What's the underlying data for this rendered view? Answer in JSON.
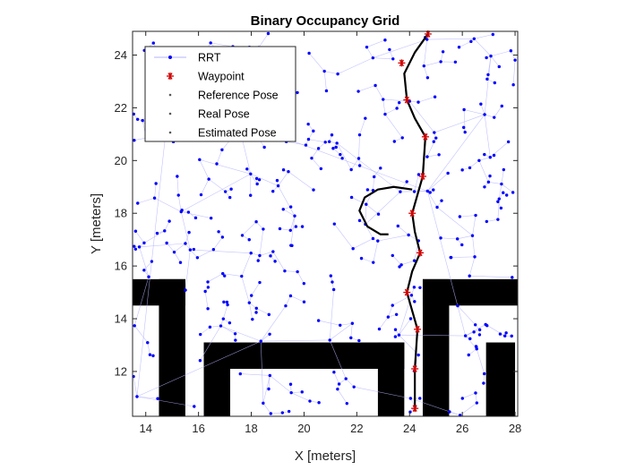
{
  "chart_data": {
    "type": "scatter",
    "title": "Binary Occupancy Grid",
    "xlabel": "X [meters]",
    "ylabel": "Y [meters]",
    "xlim": [
      13.5,
      28.1
    ],
    "ylim": [
      10.3,
      24.9
    ],
    "xticks": [
      "14",
      "16",
      "18",
      "20",
      "22",
      "24",
      "26",
      "28"
    ],
    "yticks": [
      "12",
      "14",
      "16",
      "18",
      "20",
      "22",
      "24"
    ],
    "legend_position": "top-left",
    "colors": {
      "rrt": "#0000ff",
      "edge": "#b3b3ff",
      "waypoint": "#d00000",
      "path": "#000000",
      "obstacle": "#000000"
    },
    "legend": [
      {
        "label": "RRT",
        "marker": "dot",
        "color": "#0000ff",
        "line": true
      },
      {
        "label": "Waypoint",
        "marker": "asterisk",
        "color": "#d00000",
        "line": false
      },
      {
        "label": "Reference Pose",
        "marker": "dot",
        "color": "#555555",
        "line": false
      },
      {
        "label": "Real Pose",
        "marker": "dot",
        "color": "#555555",
        "line": false
      },
      {
        "label": "Estimated Pose",
        "marker": "dot",
        "color": "#555555",
        "line": false
      }
    ],
    "obstacles": [
      {
        "x": [
          13.5,
          15.5
        ],
        "y": [
          14.5,
          15.5
        ]
      },
      {
        "x": [
          14.5,
          15.5
        ],
        "y": [
          10.3,
          15.5
        ]
      },
      {
        "x": [
          16.2,
          23.8
        ],
        "y": [
          12.1,
          13.1
        ]
      },
      {
        "x": [
          16.2,
          17.2
        ],
        "y": [
          10.3,
          13.1
        ]
      },
      {
        "x": [
          22.8,
          23.8
        ],
        "y": [
          10.3,
          13.1
        ]
      },
      {
        "x": [
          24.5,
          28.1
        ],
        "y": [
          14.5,
          15.5
        ]
      },
      {
        "x": [
          24.5,
          25.5
        ],
        "y": [
          10.3,
          15.5
        ]
      },
      {
        "x": [
          26.9,
          28.0
        ],
        "y": [
          10.3,
          13.1
        ]
      }
    ],
    "waypoints": {
      "x": [
        24.2,
        24.2,
        24.3,
        23.9,
        24.4,
        24.1,
        24.5,
        24.6,
        23.9,
        23.7,
        24.7
      ],
      "y": [
        10.6,
        12.1,
        13.6,
        15.0,
        16.5,
        18.0,
        19.4,
        20.9,
        22.3,
        23.7,
        24.8
      ]
    },
    "path": {
      "x": [
        24.2,
        24.2,
        24.3,
        24.1,
        23.9,
        24.1,
        24.4,
        24.2,
        24.1,
        24.3,
        24.5,
        24.6,
        24.2,
        23.9,
        23.8,
        24.2,
        24.7
      ],
      "y": [
        10.5,
        12.1,
        13.6,
        14.3,
        15.0,
        15.8,
        16.5,
        17.3,
        18.0,
        18.7,
        19.4,
        20.9,
        21.6,
        22.3,
        23.3,
        24.1,
        24.8
      ]
    },
    "path_detour": {
      "x": [
        24.1,
        23.4,
        22.8,
        22.3,
        22.1,
        22.4,
        22.9,
        23.2
      ],
      "y": [
        18.9,
        19.0,
        18.9,
        18.6,
        18.1,
        17.5,
        17.2,
        17.2
      ]
    }
  }
}
